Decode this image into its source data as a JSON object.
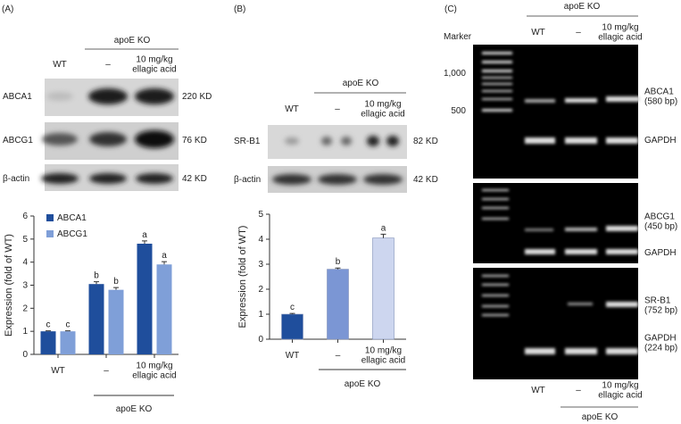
{
  "chart_data": [
    {
      "type": "bar",
      "ylabel": "Expression (fold of WT)",
      "categories": [
        "WT",
        "–",
        "10 mg/kg\nellagic acid"
      ],
      "group_label": "apoE KO",
      "series": [
        {
          "name": "ABCA1",
          "color": "#1f4e9c",
          "values": [
            1,
            3.05,
            4.8
          ],
          "errors": [
            0.02,
            0.1,
            0.12
          ],
          "letters": [
            "c",
            "b",
            "a"
          ]
        },
        {
          "name": "ABCG1",
          "color": "#7f9fd8",
          "values": [
            1,
            2.8,
            3.9
          ],
          "errors": [
            0.02,
            0.1,
            0.12
          ],
          "letters": [
            "c",
            "b",
            "a"
          ]
        }
      ],
      "ylim": [
        0,
        6
      ],
      "yticks": [
        0,
        1,
        2,
        3,
        4,
        5,
        6
      ],
      "legend": "upper left"
    },
    {
      "type": "bar",
      "ylabel": "Expression (fold of WT)",
      "categories": [
        "WT",
        "–",
        "10 mg/kg\nellagic acid"
      ],
      "group_label": "apoE KO",
      "values": [
        1,
        2.8,
        4.05
      ],
      "errors": [
        0.03,
        0.05,
        0.15
      ],
      "letters": [
        "c",
        "b",
        "a"
      ],
      "colors": [
        "#1f4e9c",
        "#7b96d4",
        "#cdd6ef"
      ],
      "ylim": [
        0,
        5
      ],
      "yticks": [
        0,
        1,
        2,
        3,
        4,
        5
      ]
    }
  ],
  "panels": {
    "a": {
      "label": "(A)",
      "group": "apoE KO",
      "columns": [
        "WT",
        "–",
        "10 mg/kg\nellagic acid"
      ],
      "rows": [
        {
          "name": "ABCA1",
          "size": "220 KD"
        },
        {
          "name": "ABCG1",
          "size": "76 KD"
        },
        {
          "name": "β-actin",
          "size": "42 KD"
        }
      ]
    },
    "b": {
      "label": "(B)",
      "group": "apoE KO",
      "columns": [
        "WT",
        "–",
        "10 mg/kg\nellagic acid"
      ],
      "rows": [
        {
          "name": "SR-B1",
          "size": "82 KD"
        },
        {
          "name": "β-actin",
          "size": "42 KD"
        }
      ]
    },
    "c": {
      "label": "(C)",
      "group": "apoE KO",
      "marker": "Marker",
      "columns": [
        "WT",
        "–",
        "10 mg/kg\nellagic acid"
      ],
      "ladder": [
        "1,000",
        "500"
      ],
      "bands": [
        "ABCA1\n(580 bp)",
        "GAPDH",
        "ABCG1\n(450 bp)",
        "GAPDH",
        "SR-B1\n(752 bp)",
        "GAPDH\n(224 bp)"
      ],
      "bottom_columns": [
        "WT",
        "–",
        "10 mg/kg\nellagic acid"
      ],
      "bottom_group": "apoE KO"
    }
  }
}
